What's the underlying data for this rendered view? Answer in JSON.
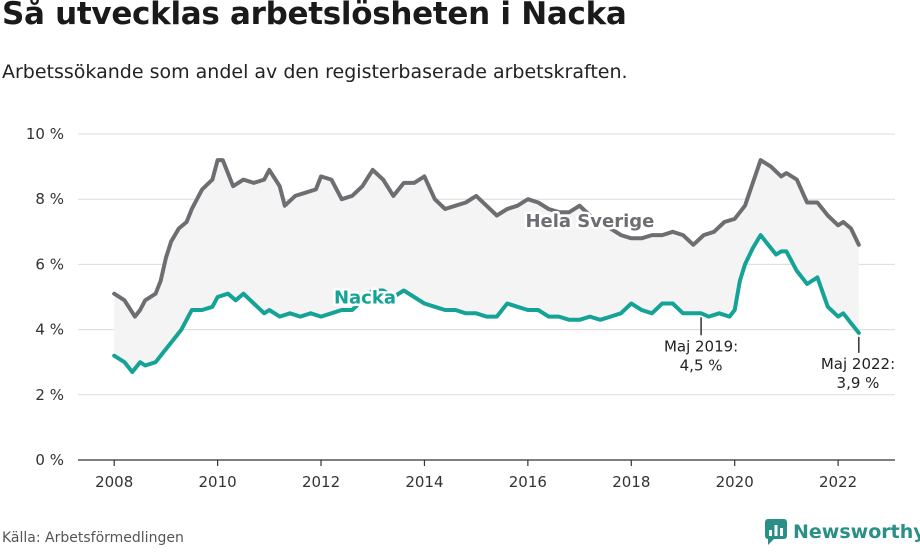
{
  "title": "Så utvecklas arbetslösheten i Nacka",
  "subtitle": "Arbetssökande som andel av den registerbaserade arbetskraften.",
  "source": "Källa: Arbetsförmedlingen",
  "brand": "Newsworthy",
  "colors": {
    "sverige": "#6e6e72",
    "nacka": "#14a396",
    "band": "#f4f4f5",
    "grid": "#dcdcdc",
    "brand": "#2a8f87"
  },
  "chart_data": {
    "type": "line",
    "ylim": [
      0,
      10
    ],
    "yticks": [
      0,
      2,
      4,
      6,
      8,
      10
    ],
    "ytick_labels": [
      "0 %",
      "2 %",
      "4 %",
      "6 %",
      "8 %",
      "10 %"
    ],
    "xlim": [
      2007.3,
      2023.1
    ],
    "xticks": [
      2008,
      2010,
      2012,
      2014,
      2016,
      2018,
      2020,
      2022
    ],
    "xtick_labels": [
      "2008",
      "2010",
      "2012",
      "2014",
      "2016",
      "2018",
      "2020",
      "2022"
    ],
    "grid": true,
    "series": [
      {
        "name": "Hela Sverige",
        "x": [
          2008.0,
          2008.2,
          2008.4,
          2008.5,
          2008.6,
          2008.8,
          2008.9,
          2009.0,
          2009.1,
          2009.25,
          2009.4,
          2009.5,
          2009.7,
          2009.9,
          2010.0,
          2010.1,
          2010.3,
          2010.5,
          2010.7,
          2010.9,
          2011.0,
          2011.2,
          2011.3,
          2011.5,
          2011.7,
          2011.9,
          2012.0,
          2012.2,
          2012.4,
          2012.6,
          2012.8,
          2013.0,
          2013.2,
          2013.4,
          2013.6,
          2013.8,
          2014.0,
          2014.2,
          2014.4,
          2014.6,
          2014.8,
          2015.0,
          2015.2,
          2015.4,
          2015.6,
          2015.8,
          2016.0,
          2016.2,
          2016.4,
          2016.6,
          2016.8,
          2017.0,
          2017.2,
          2017.4,
          2017.6,
          2017.8,
          2018.0,
          2018.2,
          2018.4,
          2018.6,
          2018.8,
          2019.0,
          2019.2,
          2019.4,
          2019.6,
          2019.8,
          2020.0,
          2020.2,
          2020.35,
          2020.5,
          2020.7,
          2020.9,
          2021.0,
          2021.2,
          2021.4,
          2021.6,
          2021.8,
          2022.0,
          2022.1,
          2022.25,
          2022.4
        ],
        "values": [
          5.1,
          4.9,
          4.4,
          4.6,
          4.9,
          5.1,
          5.5,
          6.2,
          6.7,
          7.1,
          7.3,
          7.7,
          8.3,
          8.6,
          9.2,
          9.2,
          8.4,
          8.6,
          8.5,
          8.6,
          8.9,
          8.4,
          7.8,
          8.1,
          8.2,
          8.3,
          8.7,
          8.6,
          8.0,
          8.1,
          8.4,
          8.9,
          8.6,
          8.1,
          8.5,
          8.5,
          8.7,
          8.0,
          7.7,
          7.8,
          7.9,
          8.1,
          7.8,
          7.5,
          7.7,
          7.8,
          8.0,
          7.9,
          7.7,
          7.6,
          7.6,
          7.8,
          7.5,
          7.3,
          7.1,
          6.9,
          6.8,
          6.8,
          6.9,
          6.9,
          7.0,
          6.9,
          6.6,
          6.9,
          7.0,
          7.3,
          7.4,
          7.8,
          8.5,
          9.2,
          9.0,
          8.7,
          8.8,
          8.6,
          7.9,
          7.9,
          7.5,
          7.2,
          7.3,
          7.1,
          6.6
        ]
      },
      {
        "name": "Nacka",
        "x": [
          2008.0,
          2008.2,
          2008.35,
          2008.5,
          2008.6,
          2008.8,
          2008.95,
          2009.1,
          2009.3,
          2009.5,
          2009.7,
          2009.9,
          2010.0,
          2010.2,
          2010.35,
          2010.5,
          2010.7,
          2010.9,
          2011.0,
          2011.2,
          2011.4,
          2011.6,
          2011.8,
          2012.0,
          2012.2,
          2012.4,
          2012.6,
          2012.8,
          2013.0,
          2013.2,
          2013.4,
          2013.6,
          2013.8,
          2014.0,
          2014.2,
          2014.4,
          2014.6,
          2014.8,
          2015.0,
          2015.2,
          2015.4,
          2015.6,
          2015.8,
          2016.0,
          2016.2,
          2016.4,
          2016.6,
          2016.8,
          2017.0,
          2017.2,
          2017.4,
          2017.6,
          2017.8,
          2018.0,
          2018.2,
          2018.4,
          2018.6,
          2018.8,
          2019.0,
          2019.2,
          2019.35,
          2019.5,
          2019.7,
          2019.9,
          2020.0,
          2020.1,
          2020.2,
          2020.35,
          2020.5,
          2020.6,
          2020.8,
          2020.9,
          2021.0,
          2021.2,
          2021.4,
          2021.6,
          2021.8,
          2022.0,
          2022.1,
          2022.25,
          2022.4
        ],
        "values": [
          3.2,
          3.0,
          2.7,
          3.0,
          2.9,
          3.0,
          3.3,
          3.6,
          4.0,
          4.6,
          4.6,
          4.7,
          5.0,
          5.1,
          4.9,
          5.1,
          4.8,
          4.5,
          4.6,
          4.4,
          4.5,
          4.4,
          4.5,
          4.4,
          4.5,
          4.6,
          4.6,
          4.9,
          5.2,
          5.2,
          5.0,
          5.2,
          5.0,
          4.8,
          4.7,
          4.6,
          4.6,
          4.5,
          4.5,
          4.4,
          4.4,
          4.8,
          4.7,
          4.6,
          4.6,
          4.4,
          4.4,
          4.3,
          4.3,
          4.4,
          4.3,
          4.4,
          4.5,
          4.8,
          4.6,
          4.5,
          4.8,
          4.8,
          4.5,
          4.5,
          4.5,
          4.4,
          4.5,
          4.4,
          4.6,
          5.5,
          6.0,
          6.5,
          6.9,
          6.7,
          6.3,
          6.4,
          6.4,
          5.8,
          5.4,
          5.6,
          4.7,
          4.4,
          4.5,
          4.2,
          3.9
        ]
      }
    ],
    "annotations": [
      {
        "id": "maj2019",
        "x": 2019.35,
        "y": 4.5,
        "line1": "Maj 2019:",
        "line2": "4,5 %"
      },
      {
        "id": "maj2022",
        "x": 2022.4,
        "y": 3.9,
        "line1": "Maj 2022:",
        "line2": "3,9 %"
      }
    ]
  }
}
